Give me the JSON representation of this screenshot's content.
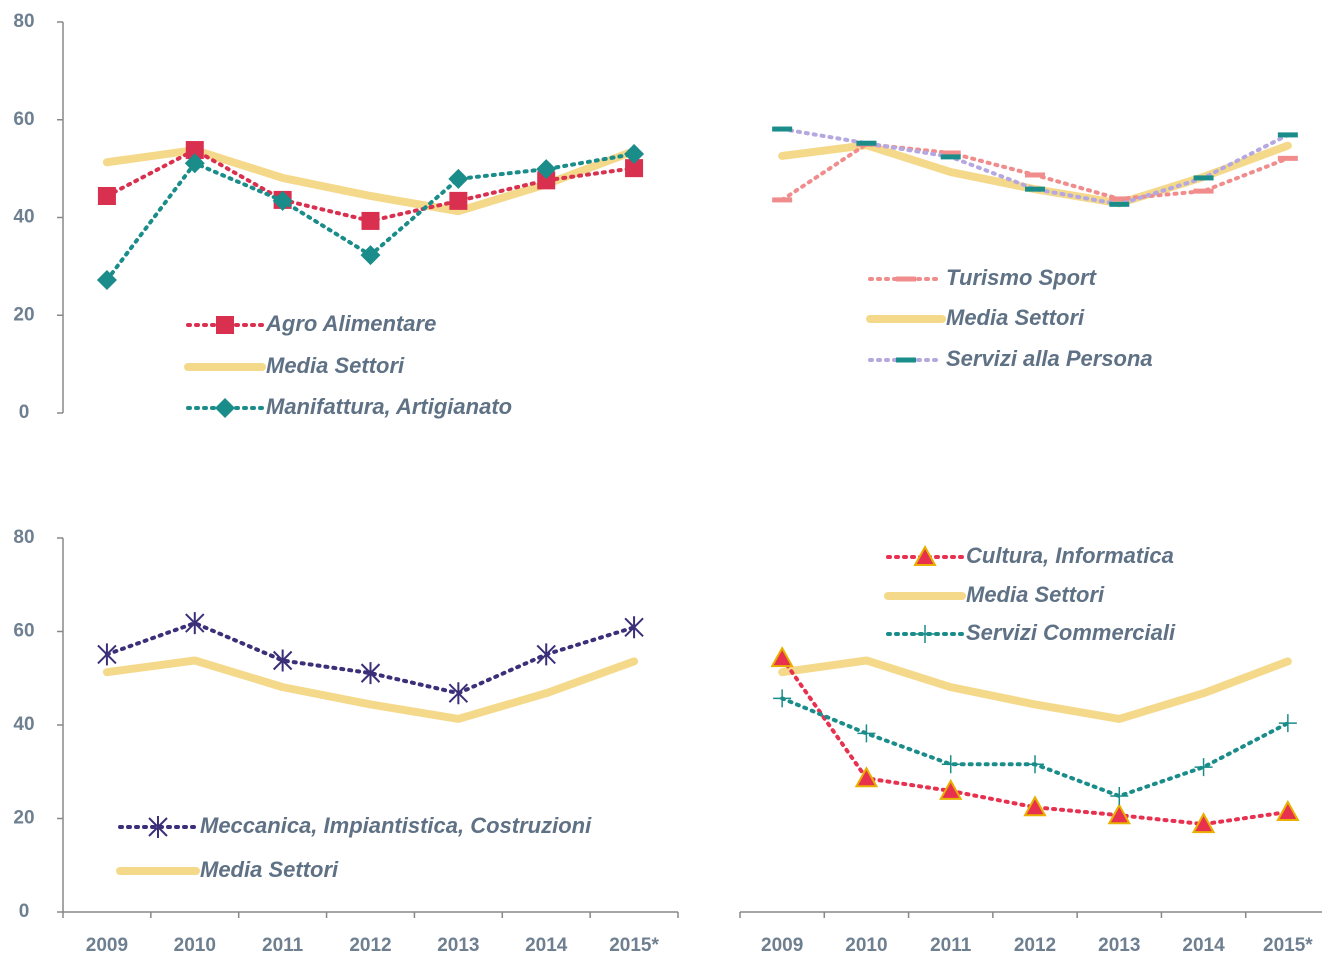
{
  "chart_data": [
    {
      "type": "line",
      "ylim": [
        0,
        80
      ],
      "yticks": [
        0,
        20,
        40,
        60,
        80
      ],
      "series": [
        {
          "name": "Agro Alimentare",
          "color": "#d9304f",
          "marker": "square",
          "line": "dotted",
          "values": [
            44.4,
            53.8,
            43.6,
            39.3,
            43.4,
            47.6,
            50.1
          ]
        },
        {
          "name": "Media Settori",
          "color": "#f5d98b",
          "marker": "none",
          "line": "solid",
          "values": [
            51.3,
            53.8,
            48.1,
            44.4,
            41.3,
            46.8,
            53.6
          ]
        },
        {
          "name": "Manifattura, Artigianato",
          "color": "#1a8c8a",
          "marker": "diamond",
          "line": "dotted",
          "values": [
            27.2,
            51.1,
            43.4,
            32.3,
            47.9,
            49.9,
            53.0
          ]
        }
      ]
    },
    {
      "type": "line",
      "ylim": [
        0,
        80
      ],
      "series": [
        {
          "name": "Turismo Sport",
          "color": "#f08c8c",
          "marker": "dash",
          "line": "dotted",
          "values": [
            43.6,
            55.0,
            53.2,
            48.7,
            43.8,
            45.4,
            52.1
          ]
        },
        {
          "name": "Media Settori",
          "color": "#f5d98b",
          "marker": "none",
          "line": "solid",
          "values": [
            52.6,
            54.8,
            49.3,
            45.8,
            42.9,
            48.3,
            54.7
          ]
        },
        {
          "name": "Servizi alla Persona",
          "color": "#b5a8e0",
          "marker_color": "#1a8c8a",
          "marker": "dash",
          "line": "dotted",
          "values": [
            58.1,
            55.2,
            52.4,
            45.8,
            42.7,
            48.1,
            56.9
          ]
        }
      ]
    },
    {
      "type": "line",
      "ylim": [
        0,
        80
      ],
      "yticks": [
        0,
        20,
        40,
        60,
        80
      ],
      "categories": [
        "2009",
        "2010",
        "2011",
        "2012",
        "2013",
        "2014",
        "2015*"
      ],
      "series": [
        {
          "name": "Meccanica, Impiantistica, Costruzioni",
          "color": "#3a2f78",
          "marker": "star",
          "line": "dotted",
          "values": [
            55.1,
            61.8,
            53.8,
            51.1,
            46.8,
            55.1,
            60.9
          ]
        },
        {
          "name": "Media Settori",
          "color": "#f5d98b",
          "marker": "none",
          "line": "solid",
          "values": [
            51.3,
            53.8,
            48.1,
            44.4,
            41.3,
            46.8,
            53.6
          ]
        }
      ]
    },
    {
      "type": "line",
      "ylim": [
        0,
        80
      ],
      "categories": [
        "2009",
        "2010",
        "2011",
        "2012",
        "2013",
        "2014",
        "2015*"
      ],
      "series": [
        {
          "name": "Cultura, Informatica",
          "color": "#e8304f",
          "marker_color": "#e8b000",
          "marker": "triangle",
          "line": "dotted",
          "values": [
            54.3,
            28.6,
            25.9,
            22.4,
            20.7,
            18.8,
            21.4
          ]
        },
        {
          "name": "Media Settori",
          "color": "#f5d98b",
          "marker": "none",
          "line": "solid",
          "values": [
            51.3,
            53.8,
            48.1,
            44.4,
            41.3,
            46.8,
            53.6
          ]
        },
        {
          "name": "Servizi Commerciali",
          "color": "#1a8c8a",
          "marker": "plus",
          "line": "dotted",
          "values": [
            45.7,
            38.2,
            31.6,
            31.6,
            24.8,
            31.0,
            40.4
          ]
        }
      ]
    }
  ]
}
